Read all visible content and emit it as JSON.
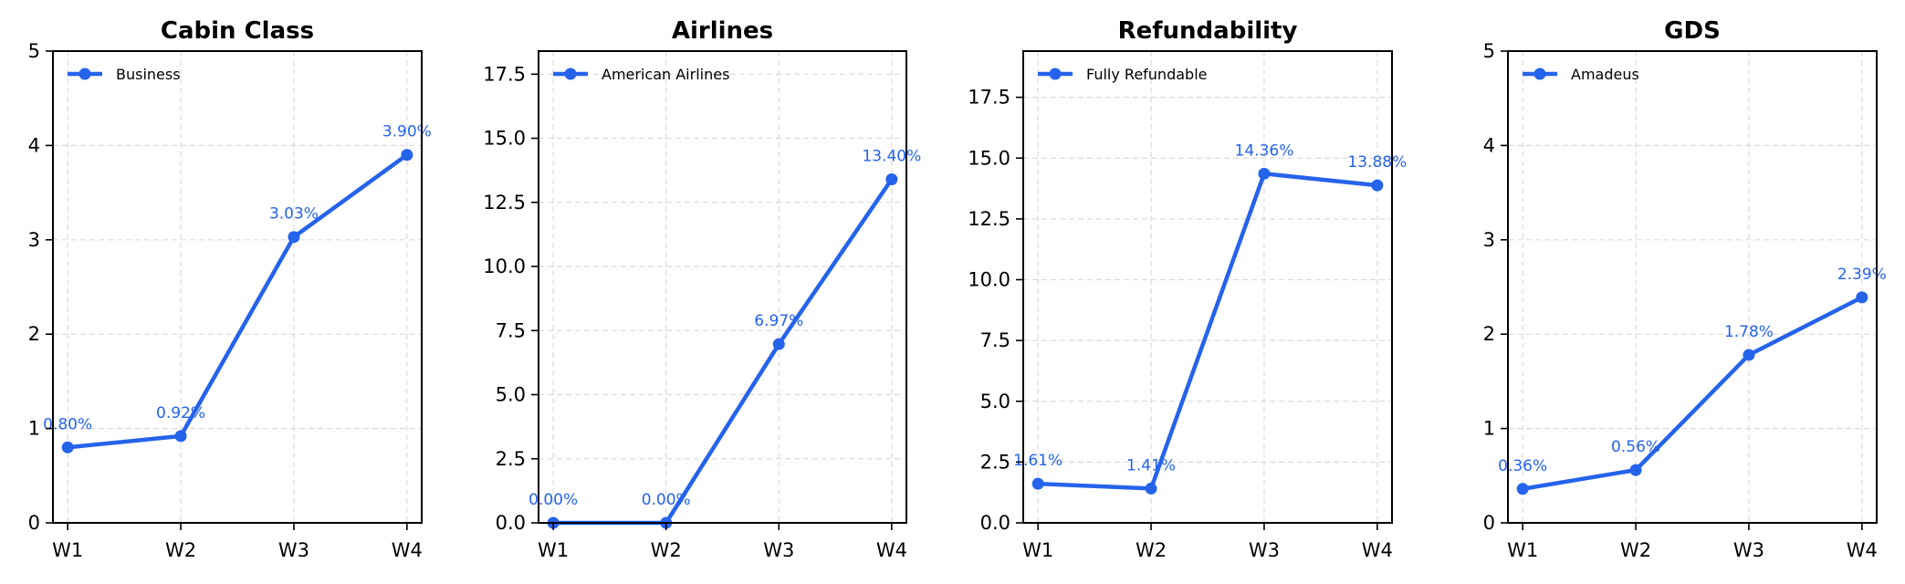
{
  "colors": {
    "series": "#2563eb",
    "grid": "#cccccc",
    "axis": "#000000"
  },
  "chart_data": [
    {
      "type": "line",
      "title": "Cabin Class",
      "categories": [
        "W1",
        "W2",
        "W3",
        "W4"
      ],
      "series": [
        {
          "name": "Business",
          "values": [
            0.8,
            0.92,
            3.03,
            3.9
          ]
        }
      ],
      "data_labels": [
        "0.80%",
        "0.92%",
        "3.03%",
        "3.90%"
      ],
      "ylim": [
        0,
        5
      ],
      "yticks": [
        0,
        1,
        2,
        3,
        4,
        5
      ],
      "ytick_labels": [
        "0",
        "1",
        "2",
        "3",
        "4",
        "5"
      ],
      "grid": true,
      "legend": "top-left"
    },
    {
      "type": "line",
      "title": "Airlines",
      "categories": [
        "W1",
        "W2",
        "W3",
        "W4"
      ],
      "series": [
        {
          "name": "American Airlines",
          "values": [
            0.0,
            0.0,
            6.97,
            13.4
          ]
        }
      ],
      "data_labels": [
        "0.00%",
        "0.00%",
        "6.97%",
        "13.40%"
      ],
      "ylim": [
        0,
        18.4
      ],
      "yticks": [
        0,
        2.5,
        5,
        7.5,
        10,
        12.5,
        15,
        17.5
      ],
      "ytick_labels": [
        "0.0",
        "2.5",
        "5.0",
        "7.5",
        "10.0",
        "12.5",
        "15.0",
        "17.5"
      ],
      "grid": true,
      "legend": "top-left"
    },
    {
      "type": "line",
      "title": "Refundability",
      "categories": [
        "W1",
        "W2",
        "W3",
        "W4"
      ],
      "series": [
        {
          "name": "Fully Refundable",
          "values": [
            1.61,
            1.41,
            14.36,
            13.88
          ]
        }
      ],
      "data_labels": [
        "1.61%",
        "1.41%",
        "14.36%",
        "13.88%"
      ],
      "ylim": [
        0,
        19.4
      ],
      "yticks": [
        0,
        2.5,
        5,
        7.5,
        10,
        12.5,
        15,
        17.5
      ],
      "ytick_labels": [
        "0.0",
        "2.5",
        "5.0",
        "7.5",
        "10.0",
        "12.5",
        "15.0",
        "17.5"
      ],
      "grid": true,
      "legend": "top-left"
    },
    {
      "type": "line",
      "title": "GDS",
      "categories": [
        "W1",
        "W2",
        "W3",
        "W4"
      ],
      "series": [
        {
          "name": "Amadeus",
          "values": [
            0.36,
            0.56,
            1.78,
            2.39
          ]
        }
      ],
      "data_labels": [
        "0.36%",
        "0.56%",
        "1.78%",
        "2.39%"
      ],
      "ylim": [
        0,
        5
      ],
      "yticks": [
        0,
        1,
        2,
        3,
        4,
        5
      ],
      "ytick_labels": [
        "0",
        "1",
        "2",
        "3",
        "4",
        "5"
      ],
      "grid": true,
      "legend": "top-left"
    }
  ]
}
